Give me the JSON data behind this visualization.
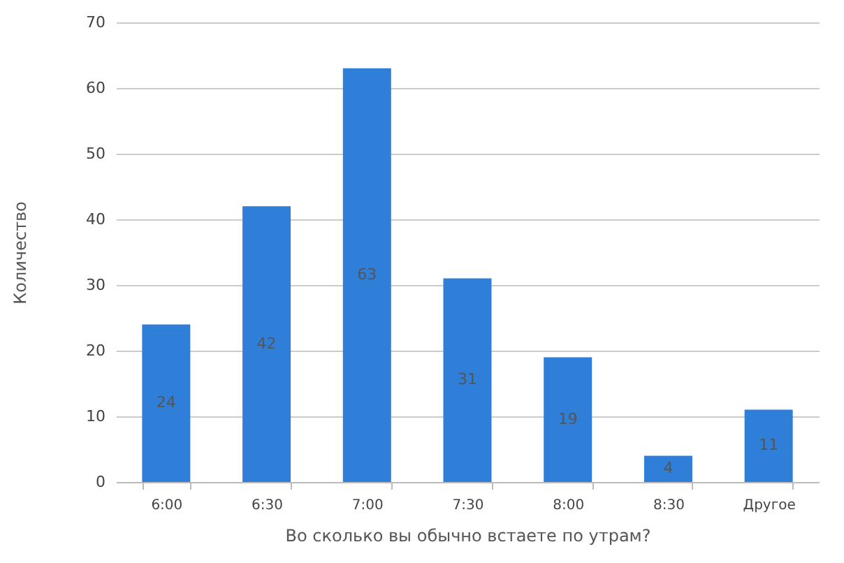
{
  "chart_data": {
    "type": "bar",
    "xlabel": "Во сколько вы обычно встаете по утрам?",
    "ylabel": "Количество",
    "categories": [
      "6:00",
      "6:30",
      "7:00",
      "7:30",
      "8:00",
      "8:30",
      "Другое"
    ],
    "values": [
      24,
      42,
      63,
      31,
      19,
      4,
      11
    ],
    "color": "#2f7ed8",
    "ylim": [
      0,
      70
    ],
    "yticks": [
      0,
      10,
      20,
      30,
      40,
      50,
      60,
      70
    ],
    "grid": "y",
    "data_labels": true
  }
}
